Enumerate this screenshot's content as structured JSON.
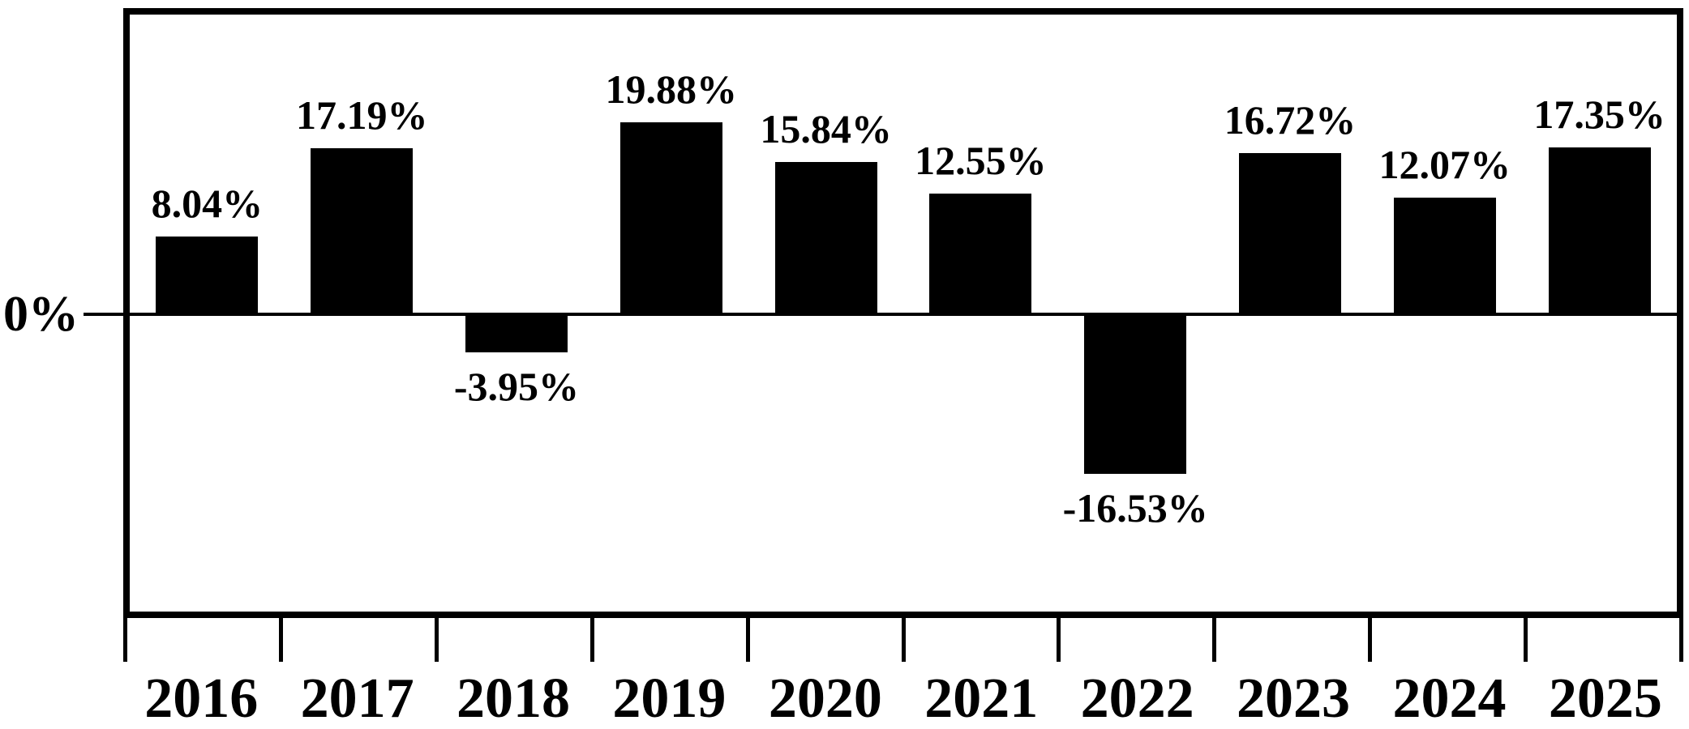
{
  "chart_data": {
    "type": "bar",
    "title": "",
    "categories": [
      "2016",
      "2017",
      "2018",
      "2019",
      "2020",
      "2021",
      "2022",
      "2023",
      "2024",
      "2025"
    ],
    "values": [
      8.04,
      17.19,
      -3.95,
      19.88,
      15.84,
      12.55,
      -16.53,
      16.72,
      12.07,
      17.35
    ],
    "value_labels": [
      "8.04%",
      "17.19%",
      "-3.95%",
      "19.88%",
      "15.84%",
      "12.55%",
      "-16.53%",
      "16.72%",
      "12.07%",
      "17.35%"
    ],
    "xlabel": "",
    "ylabel": "",
    "y_zero_label": "0%",
    "ylim": [
      -30.9,
      31.0
    ],
    "x_axis_tick_positions": "slot-boundaries",
    "grid": false,
    "legend": false,
    "bar_color": "#000000",
    "frame_color": "#000000",
    "background_color": "#ffffff"
  }
}
